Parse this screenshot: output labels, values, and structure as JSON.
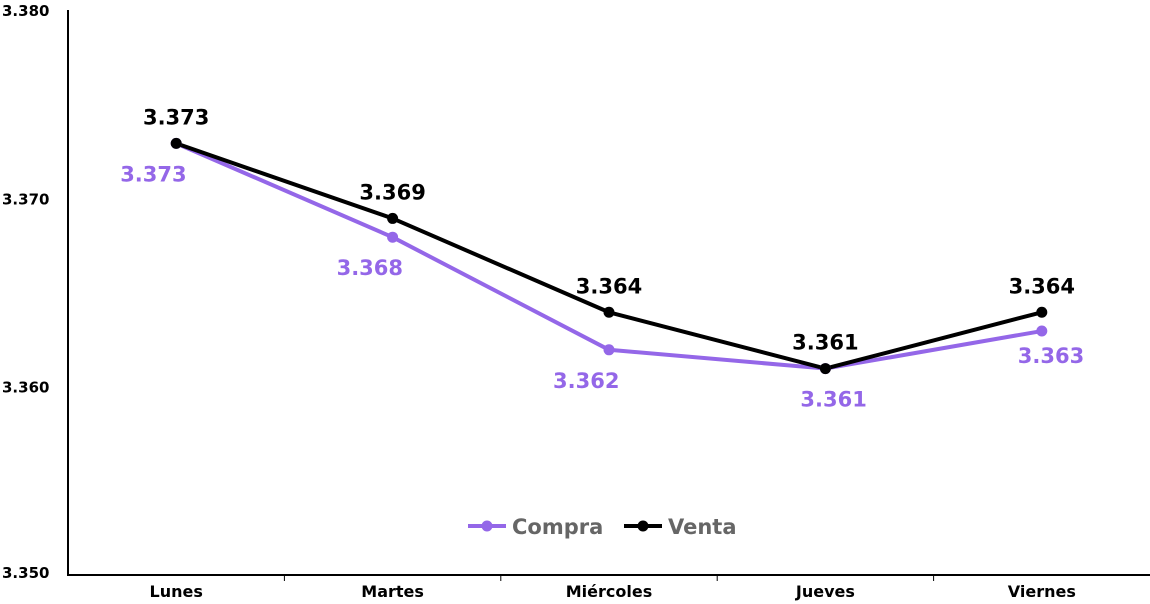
{
  "chart_data": {
    "type": "line",
    "categories": [
      "Lunes",
      "Martes",
      "Miércoles",
      "Jueves",
      "Viernes"
    ],
    "ylim": [
      3.35,
      3.38
    ],
    "yticks": [
      "3.350",
      "3.360",
      "3.370",
      "3.380"
    ],
    "title": "",
    "xlabel": "",
    "ylabel": "",
    "grid": false,
    "legend_position": "bottom-center",
    "series": [
      {
        "name": "Compra",
        "color": "#9467e8",
        "values": [
          3.373,
          3.368,
          3.362,
          3.361,
          3.363
        ],
        "labels": [
          "3.373",
          "3.368",
          "3.362",
          "3.361",
          "3.363"
        ]
      },
      {
        "name": "Venta",
        "color": "#000000",
        "values": [
          3.373,
          3.369,
          3.364,
          3.361,
          3.364
        ],
        "labels": [
          "3.373",
          "3.369",
          "3.364",
          "3.361",
          "3.364"
        ]
      }
    ]
  }
}
